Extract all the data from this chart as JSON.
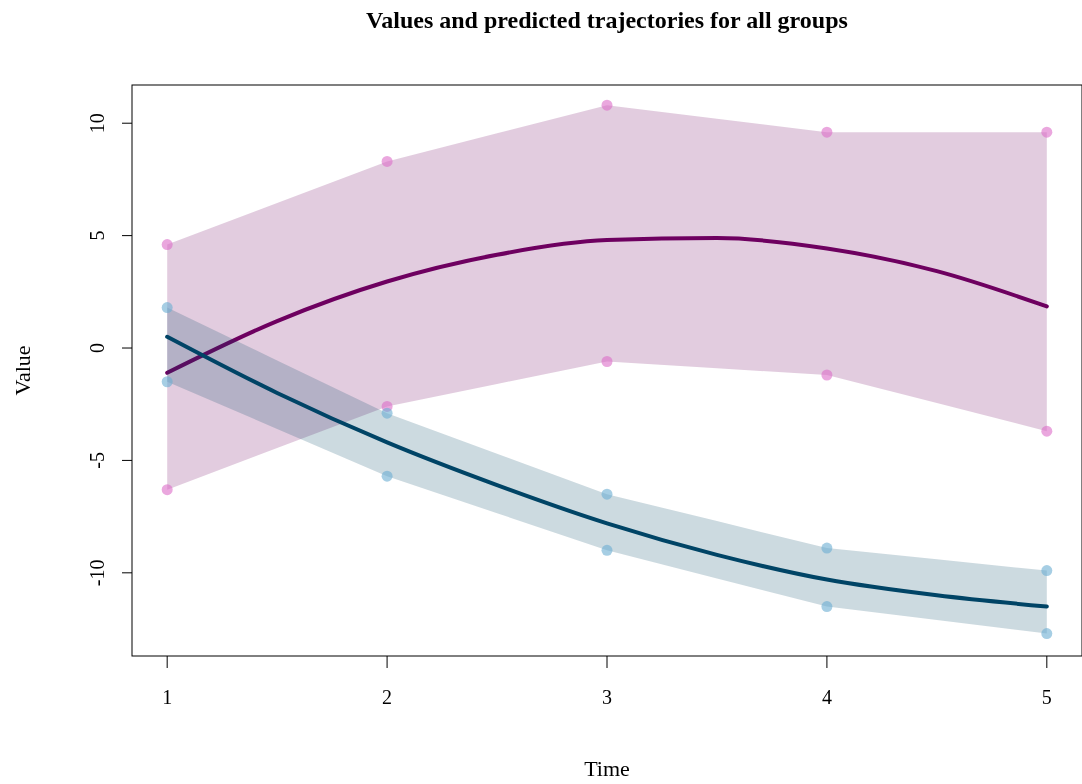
{
  "chart_data": {
    "type": "line",
    "title": "Values and predicted trajectories for all groups",
    "xlabel": "Time",
    "ylabel": "Value",
    "xlim": [
      0.84,
      5.16
    ],
    "ylim": [
      -13.7,
      11.7
    ],
    "xticks": [
      1,
      2,
      3,
      4,
      5
    ],
    "yticks": [
      -10,
      -5,
      0,
      5,
      10
    ],
    "grid": false,
    "series": [
      {
        "color": "#6e0060",
        "x": [
          1,
          1.5,
          2,
          2.5,
          3,
          3.5,
          4,
          4.5,
          5
        ],
        "values": [
          -1.1,
          1.2,
          2.96,
          4.15,
          4.8,
          4.89,
          4.43,
          3.42,
          1.85
        ],
        "lower": [
          -6.3,
          -4.45,
          -2.6,
          -1.6,
          -0.6,
          -0.9,
          -1.2,
          -2.45,
          -3.7
        ],
        "upper": [
          4.6,
          6.45,
          8.3,
          9.55,
          10.8,
          10.2,
          9.6,
          9.6,
          9.6
        ]
      },
      {
        "color": "#004466",
        "x": [
          1,
          1.5,
          2,
          2.5,
          3,
          3.5,
          4,
          4.5,
          5
        ],
        "values": [
          0.5,
          -2.0,
          -4.2,
          -6.1,
          -7.8,
          -9.2,
          -10.3,
          -11.0,
          -11.5
        ],
        "lower": [
          -1.5,
          -3.6,
          -5.7,
          -7.35,
          -9.0,
          -10.25,
          -11.5,
          -12.1,
          -12.7
        ],
        "upper": [
          1.8,
          -0.55,
          -2.9,
          -4.7,
          -6.5,
          -7.7,
          -8.9,
          -9.4,
          -9.9
        ]
      },
      {
        "type": "scatter",
        "color": "#dc6cc8",
        "x": [
          1,
          1,
          2,
          2,
          3,
          3,
          4,
          4,
          5,
          5
        ],
        "values": [
          -6.3,
          4.6,
          -2.6,
          8.3,
          -0.6,
          10.8,
          -1.2,
          9.6,
          -3.7,
          9.6
        ]
      },
      {
        "type": "scatter",
        "color": "#6aaed2",
        "x": [
          1,
          1,
          2,
          2,
          3,
          3,
          4,
          4,
          5,
          5
        ],
        "values": [
          -1.5,
          1.8,
          -5.7,
          -2.9,
          -9.0,
          -6.5,
          -11.5,
          -8.9,
          -12.7,
          -9.9
        ]
      }
    ]
  }
}
